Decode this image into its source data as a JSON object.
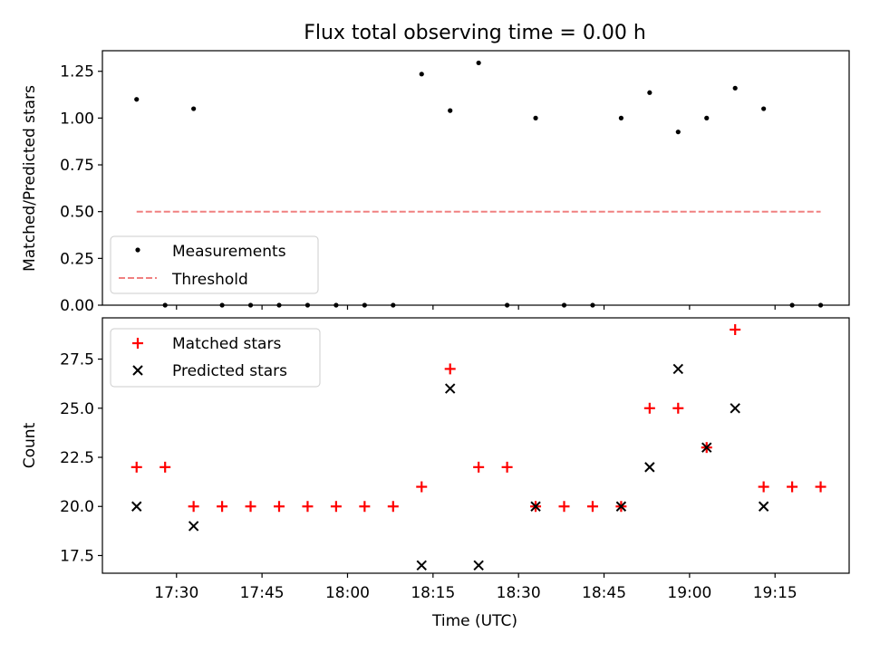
{
  "title": "Flux total observing time = 0.00 h",
  "xlabel": "Time (UTC)",
  "x_tick_labels": [
    "17:30",
    "17:45",
    "18:00",
    "18:15",
    "18:30",
    "18:45",
    "19:00",
    "19:15"
  ],
  "colors": {
    "measurements": "#000000",
    "threshold": "#f08080",
    "matched": "#ff0000",
    "predicted": "#000000"
  },
  "chart_data": [
    {
      "type": "scatter",
      "ylabel": "Matched/Predicted stars",
      "xlim": [
        "17:17",
        "19:28"
      ],
      "ylim": [
        0,
        1.36
      ],
      "y_tick_labels": [
        "0.00",
        "0.25",
        "0.50",
        "0.75",
        "1.00",
        "1.25"
      ],
      "legend": "lower-left",
      "series": [
        {
          "name": "Measurements",
          "marker": "dot",
          "x": [
            "17:23",
            "17:28",
            "17:33",
            "17:38",
            "17:43",
            "17:48",
            "17:53",
            "17:58",
            "18:03",
            "18:08",
            "18:13",
            "18:18",
            "18:23",
            "18:28",
            "18:33",
            "18:38",
            "18:43",
            "18:48",
            "18:53",
            "18:58",
            "19:03",
            "19:08",
            "19:13",
            "19:18",
            "19:23"
          ],
          "y": [
            1.1,
            0.0,
            1.05,
            0.0,
            0.0,
            0.0,
            0.0,
            0.0,
            0.0,
            0.0,
            1.235,
            1.04,
            1.295,
            0.0,
            1.0,
            0.0,
            0.0,
            1.0,
            1.136,
            0.926,
            1.0,
            1.16,
            1.05,
            0.0,
            0.0
          ]
        },
        {
          "name": "Threshold",
          "marker": "dashed-line",
          "x": [
            "17:23",
            "19:23"
          ],
          "y": [
            0.5,
            0.5
          ]
        }
      ]
    },
    {
      "type": "scatter",
      "ylabel": "Count",
      "xlim": [
        "17:17",
        "19:28"
      ],
      "ylim": [
        16.6,
        29.6
      ],
      "y_tick_labels": [
        "17.5",
        "20.0",
        "22.5",
        "25.0",
        "27.5"
      ],
      "legend": "upper-left",
      "series": [
        {
          "name": "Matched stars",
          "marker": "plus",
          "x": [
            "17:23",
            "17:28",
            "17:33",
            "17:38",
            "17:43",
            "17:48",
            "17:53",
            "17:58",
            "18:03",
            "18:08",
            "18:13",
            "18:18",
            "18:23",
            "18:28",
            "18:33",
            "18:38",
            "18:43",
            "18:48",
            "18:53",
            "18:58",
            "19:03",
            "19:08",
            "19:13",
            "19:18",
            "19:23"
          ],
          "y": [
            22,
            22,
            20,
            20,
            20,
            20,
            20,
            20,
            20,
            20,
            21,
            27,
            22,
            22,
            20,
            20,
            20,
            20,
            25,
            25,
            23,
            29,
            21,
            21,
            21
          ]
        },
        {
          "name": "Predicted stars",
          "marker": "x",
          "x": [
            "17:23",
            "17:33",
            "18:13",
            "18:18",
            "18:23",
            "18:33",
            "18:48",
            "18:53",
            "18:58",
            "19:03",
            "19:08",
            "19:13"
          ],
          "y": [
            20,
            19,
            17,
            26,
            17,
            20,
            20,
            22,
            27,
            23,
            25,
            20
          ]
        }
      ]
    }
  ]
}
